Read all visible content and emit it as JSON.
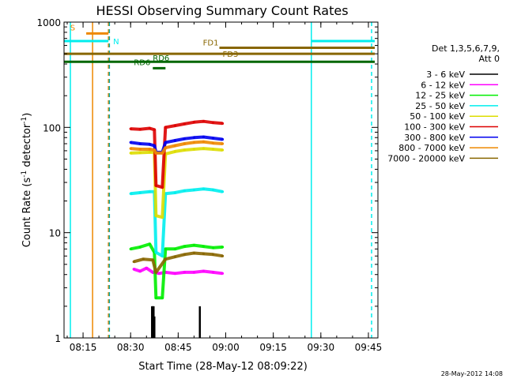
{
  "chart_data": {
    "type": "line",
    "title": "HESSI Observing Summary Count Rates",
    "xlabel": "Start Time (28-May-12 08:09:22)",
    "ylabel_main": "Count Rate (s",
    "ylabel_sup1": "-1",
    "ylabel_mid": " detector",
    "ylabel_sup2": "-1",
    "ylabel_end": ")",
    "yscale": "log",
    "xlim": [
      "08:09",
      "09:48"
    ],
    "ylim": [
      1,
      1000
    ],
    "x_tick_labels": [
      "08:15",
      "08:30",
      "08:45",
      "09:00",
      "09:15",
      "09:30",
      "09:45"
    ],
    "x_tick_times": [
      "08:15",
      "08:30",
      "08:45",
      "09:00",
      "09:15",
      "09:30",
      "09:45"
    ],
    "y_tick_labels": [
      "1",
      "10",
      "100",
      "1000"
    ],
    "y_tick_values": [
      1,
      10,
      100,
      1000
    ],
    "legend": {
      "header": [
        "Det 1,3,5,6,7,9,",
        "Att 0"
      ],
      "placement": "right",
      "entries": [
        {
          "label": "3 - 6 keV",
          "color": "#000000"
        },
        {
          "label": "6 - 12 keV",
          "color": "#ff00ff"
        },
        {
          "label": "12 - 25 keV",
          "color": "#00ee00"
        },
        {
          "label": "25 - 50 keV",
          "color": "#00eeee"
        },
        {
          "label": "50 - 100 keV",
          "color": "#dddd00"
        },
        {
          "label": "100 - 300 keV",
          "color": "#dd0000"
        },
        {
          "label": "300 - 800 keV",
          "color": "#0000ee"
        },
        {
          "label": "800 - 7000 keV",
          "color": "#ee8800"
        },
        {
          "label": "7000 - 20000 keV",
          "color": "#886600"
        }
      ]
    },
    "series": [
      {
        "name": "3 - 6 keV",
        "color": "#000000",
        "style": "spikes",
        "points": [
          [
            "08:36:45",
            2.0
          ],
          [
            "08:37:00",
            2.0
          ],
          [
            "08:37:15",
            2.0
          ],
          [
            "08:37:30",
            1.6
          ],
          [
            "08:51:50",
            2.0
          ]
        ]
      },
      {
        "name": "6 - 12 keV",
        "color": "#ff00ff",
        "points": [
          [
            "08:31",
            4.5
          ],
          [
            "08:33",
            4.3
          ],
          [
            "08:35",
            4.6
          ],
          [
            "08:37",
            4.2
          ],
          [
            "08:39",
            4.1
          ],
          [
            "08:41",
            4.2
          ],
          [
            "08:44",
            4.1
          ],
          [
            "08:47",
            4.2
          ],
          [
            "08:50",
            4.2
          ],
          [
            "08:53",
            4.3
          ],
          [
            "08:56",
            4.2
          ],
          [
            "08:59",
            4.1
          ]
        ]
      },
      {
        "name": "12 - 25 keV",
        "color": "#00ee00",
        "points": [
          [
            "08:30",
            7.0
          ],
          [
            "08:33",
            7.3
          ],
          [
            "08:36",
            7.8
          ],
          [
            "08:37.5",
            6.5
          ],
          [
            "08:38",
            2.4
          ],
          [
            "08:40",
            2.4
          ],
          [
            "08:41",
            7.0
          ],
          [
            "08:44",
            7.0
          ],
          [
            "08:47",
            7.4
          ],
          [
            "08:50",
            7.6
          ],
          [
            "08:53",
            7.4
          ],
          [
            "08:56",
            7.2
          ],
          [
            "08:59",
            7.3
          ]
        ]
      },
      {
        "name": "25 - 50 keV",
        "color": "#00eeee",
        "points": [
          [
            "08:30",
            23.5
          ],
          [
            "08:33",
            24.0
          ],
          [
            "08:36",
            24.5
          ],
          [
            "08:37.5",
            24.5
          ],
          [
            "08:38",
            6.5
          ],
          [
            "08:40",
            6.0
          ],
          [
            "08:41",
            23.5
          ],
          [
            "08:44",
            24.0
          ],
          [
            "08:47",
            25.0
          ],
          [
            "08:50",
            25.5
          ],
          [
            "08:53",
            26.0
          ],
          [
            "08:56",
            25.5
          ],
          [
            "08:59",
            24.5
          ]
        ]
      },
      {
        "name": "50 - 100 keV",
        "color": "#dddd00",
        "points": [
          [
            "08:30",
            57.0
          ],
          [
            "08:33",
            57.5
          ],
          [
            "08:36",
            58.0
          ],
          [
            "08:37.5",
            58.0
          ],
          [
            "08:38",
            14.5
          ],
          [
            "08:40",
            14.0
          ],
          [
            "08:41",
            56.0
          ],
          [
            "08:44",
            59.0
          ],
          [
            "08:47",
            61.0
          ],
          [
            "08:50",
            62.0
          ],
          [
            "08:53",
            63.0
          ],
          [
            "08:56",
            62.0
          ],
          [
            "08:59",
            61.0
          ]
        ]
      },
      {
        "name": "100 - 300 keV",
        "color": "#dd0000",
        "points": [
          [
            "08:30",
            97.0
          ],
          [
            "08:33",
            96.0
          ],
          [
            "08:36",
            98.0
          ],
          [
            "08:37.5",
            95.0
          ],
          [
            "08:38",
            28.0
          ],
          [
            "08:40",
            27.0
          ],
          [
            "08:41",
            100.0
          ],
          [
            "08:44",
            104.0
          ],
          [
            "08:47",
            108.0
          ],
          [
            "08:50",
            112.0
          ],
          [
            "08:53",
            114.0
          ],
          [
            "08:56",
            111.0
          ],
          [
            "08:59",
            109.0
          ]
        ]
      },
      {
        "name": "300 - 800 keV",
        "color": "#0000ee",
        "points": [
          [
            "08:30",
            72.0
          ],
          [
            "08:33",
            70.0
          ],
          [
            "08:36",
            69.0
          ],
          [
            "08:37.5",
            67.0
          ],
          [
            "08:38",
            58.0
          ],
          [
            "08:40",
            58.0
          ],
          [
            "08:41",
            72.0
          ],
          [
            "08:44",
            75.0
          ],
          [
            "08:47",
            78.0
          ],
          [
            "08:50",
            80.0
          ],
          [
            "08:53",
            81.0
          ],
          [
            "08:56",
            79.0
          ],
          [
            "08:59",
            77.0
          ]
        ]
      },
      {
        "name": "800 - 7000 keV",
        "color": "#ee8800",
        "points": [
          [
            "08:30",
            63.0
          ],
          [
            "08:33",
            62.0
          ],
          [
            "08:36",
            62.0
          ],
          [
            "08:37.5",
            61.0
          ],
          [
            "08:38",
            57.0
          ],
          [
            "08:40",
            57.0
          ],
          [
            "08:41",
            64.0
          ],
          [
            "08:44",
            67.0
          ],
          [
            "08:47",
            70.0
          ],
          [
            "08:50",
            72.0
          ],
          [
            "08:53",
            73.0
          ],
          [
            "08:56",
            71.0
          ],
          [
            "08:59",
            70.0
          ]
        ]
      },
      {
        "name": "7000 - 20000 keV",
        "color": "#886600",
        "points": [
          [
            "08:31",
            5.3
          ],
          [
            "08:34",
            5.6
          ],
          [
            "08:37",
            5.5
          ],
          [
            "08:38",
            4.2
          ],
          [
            "08:41",
            5.6
          ],
          [
            "08:44",
            5.9
          ],
          [
            "08:47",
            6.2
          ],
          [
            "08:50",
            6.4
          ],
          [
            "08:53",
            6.3
          ],
          [
            "08:56",
            6.2
          ],
          [
            "08:59",
            6.0
          ]
        ]
      }
    ],
    "flags": [
      {
        "label": "S",
        "color": "#ee8800",
        "start": "08:16",
        "end": "08:23",
        "level": 780,
        "label_pos": "left"
      },
      {
        "label": "N",
        "color": "#00eeee",
        "start": "08:09",
        "end": "08:23",
        "level": 660,
        "label_pos": "after"
      },
      {
        "label": "N",
        "color": "#00eeee",
        "start": "09:27",
        "end": "09:47",
        "level": 660,
        "label_pos": "none"
      },
      {
        "label": "FD1",
        "color": "#886600",
        "start": "08:58",
        "end": "09:47",
        "level": 570,
        "label_pos": "above-left"
      },
      {
        "label": "FD3",
        "color": "#886600",
        "start": "08:09",
        "end": "09:47",
        "level": 500,
        "label_pos": "below-right"
      },
      {
        "label": "RD6",
        "color": "#006600",
        "start": "08:09",
        "end": "09:47",
        "level": 420,
        "label_pos": "mid-right"
      },
      {
        "label": "RD6",
        "color": "#006600",
        "start": "08:37",
        "end": "08:41",
        "level": 365,
        "label_pos": "left"
      }
    ],
    "vertical_markers": [
      {
        "time": "08:11",
        "color": "#00eeee",
        "style": "solid"
      },
      {
        "time": "08:18",
        "color": "#ee8800",
        "style": "solid"
      },
      {
        "time": "08:23",
        "color": "#ee8800",
        "style": "dashed"
      },
      {
        "time": "08:23.3",
        "color": "#00aaaa",
        "style": "dashed"
      },
      {
        "time": "09:27",
        "color": "#00eeee",
        "style": "solid"
      },
      {
        "time": "09:46",
        "color": "#00eeee",
        "style": "dashed"
      }
    ],
    "footer": "28-May-2012 14:08"
  }
}
